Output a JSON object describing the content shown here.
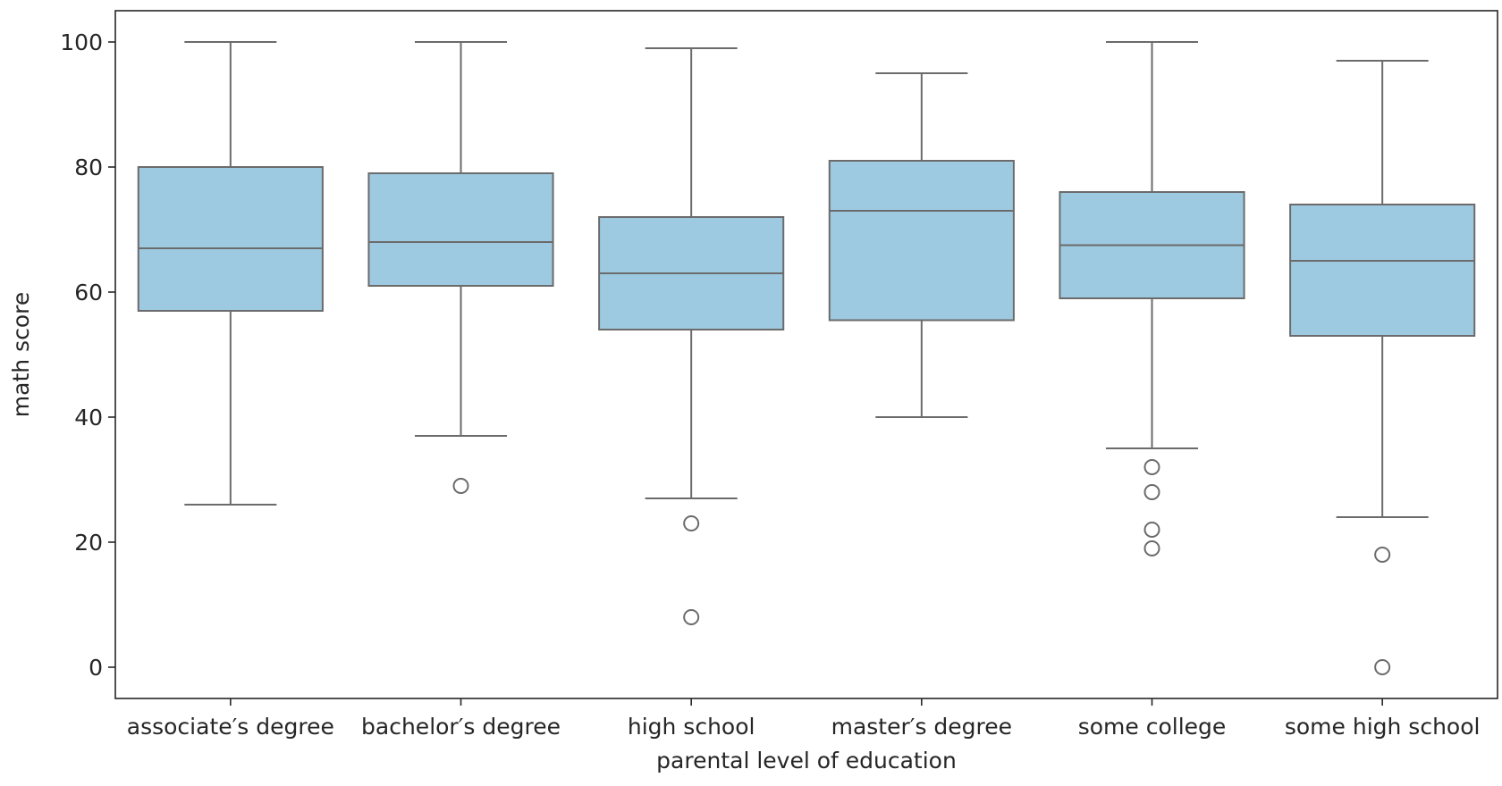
{
  "chart_data": {
    "type": "box",
    "title": "",
    "xlabel": "parental level of education",
    "ylabel": "math score",
    "ylim": [
      -5,
      105
    ],
    "yticks": [
      0,
      20,
      40,
      60,
      80,
      100
    ],
    "ytick_labels": [
      "0",
      "20",
      "40",
      "60",
      "80",
      "100"
    ],
    "grid": false,
    "box_color": "#9ecae1",
    "line_color": "#6b6b6b",
    "categories": [
      "associate's degree",
      "bachelor's degree",
      "high school",
      "master's degree",
      "some college",
      "some high school"
    ],
    "category_labels": [
      "associate′s degree",
      "bachelor′s degree",
      "high school",
      "master′s degree",
      "some college",
      "some high school"
    ],
    "boxes": [
      {
        "whisker_low": 26,
        "q1": 57,
        "median": 67,
        "q3": 80,
        "whisker_high": 100,
        "outliers": []
      },
      {
        "whisker_low": 37,
        "q1": 61,
        "median": 68,
        "q3": 79,
        "whisker_high": 100,
        "outliers": [
          29
        ]
      },
      {
        "whisker_low": 27,
        "q1": 54,
        "median": 63,
        "q3": 72,
        "whisker_high": 99,
        "outliers": [
          23,
          8
        ]
      },
      {
        "whisker_low": 40,
        "q1": 55.5,
        "median": 73,
        "q3": 81,
        "whisker_high": 95,
        "outliers": []
      },
      {
        "whisker_low": 35,
        "q1": 59,
        "median": 67.5,
        "q3": 76,
        "whisker_high": 100,
        "outliers": [
          32,
          28,
          22,
          19
        ]
      },
      {
        "whisker_low": 24,
        "q1": 53,
        "median": 65,
        "q3": 74,
        "whisker_high": 97,
        "outliers": [
          18,
          0
        ]
      }
    ]
  }
}
